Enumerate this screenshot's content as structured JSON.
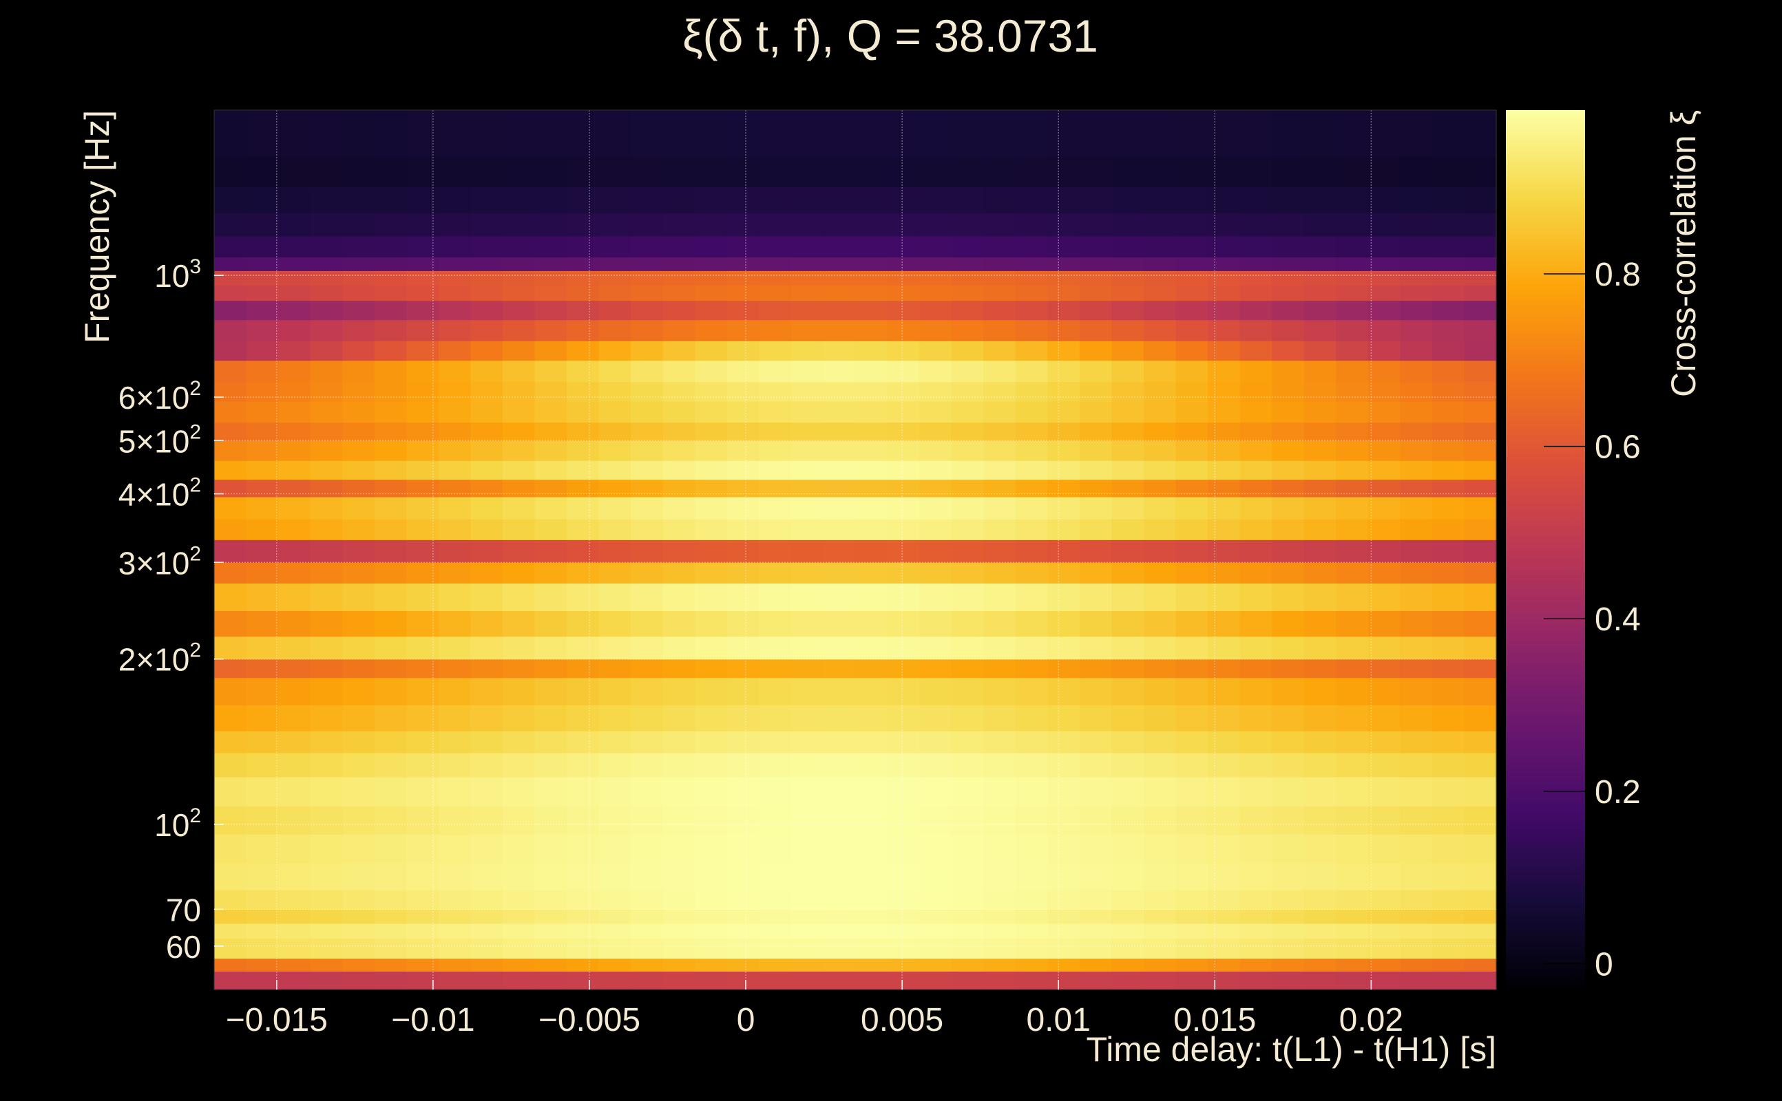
{
  "chart_data": {
    "type": "heatmap",
    "title": "ξ(δ t, f), Q = 38.0731",
    "xlabel": "Time delay: t(L1) - t(H1) [s]",
    "ylabel": "Frequency [Hz]",
    "colorbar_label": "Cross-correlation ξ",
    "colormap": "inferno",
    "xlim": [
      -0.017,
      0.024
    ],
    "ylim_log": [
      50,
      2000
    ],
    "y_scale": "log",
    "clim": [
      -0.03,
      0.99
    ],
    "grid": true,
    "x_ticks": [
      {
        "value": -0.015,
        "label": "−0.015"
      },
      {
        "value": -0.01,
        "label": "−0.01"
      },
      {
        "value": -0.005,
        "label": "−0.005"
      },
      {
        "value": 0,
        "label": "0"
      },
      {
        "value": 0.005,
        "label": "0.005"
      },
      {
        "value": 0.01,
        "label": "0.01"
      },
      {
        "value": 0.015,
        "label": "0.015"
      },
      {
        "value": 0.02,
        "label": "0.02"
      }
    ],
    "y_ticks": [
      {
        "value": 60,
        "base": "60",
        "exp": ""
      },
      {
        "value": 70,
        "base": "70",
        "exp": ""
      },
      {
        "value": 100,
        "base": "10",
        "exp": "2"
      },
      {
        "value": 200,
        "base": "2×10",
        "exp": "2"
      },
      {
        "value": 300,
        "base": "3×10",
        "exp": "2"
      },
      {
        "value": 400,
        "base": "4×10",
        "exp": "2"
      },
      {
        "value": 500,
        "base": "5×10",
        "exp": "2"
      },
      {
        "value": 600,
        "base": "6×10",
        "exp": "2"
      },
      {
        "value": 1000,
        "base": "10",
        "exp": "3"
      }
    ],
    "colorbar_ticks": [
      {
        "value": 0,
        "label": "0"
      },
      {
        "value": 0.2,
        "label": "0.2"
      },
      {
        "value": 0.4,
        "label": "0.4"
      },
      {
        "value": 0.6,
        "label": "0.6"
      },
      {
        "value": 0.8,
        "label": "0.8"
      }
    ],
    "rows": [
      {
        "f0": 50,
        "f1": 54,
        "base": 0.48,
        "peak": 0.05
      },
      {
        "f0": 54,
        "f1": 57,
        "base": 0.62,
        "peak": 0.2
      },
      {
        "f0": 57,
        "f1": 62,
        "base": 0.88,
        "peak": 0.1
      },
      {
        "f0": 62,
        "f1": 66,
        "base": 0.9,
        "peak": 0.09
      },
      {
        "f0": 66,
        "f1": 70,
        "base": 0.83,
        "peak": 0.15
      },
      {
        "f0": 70,
        "f1": 76,
        "base": 0.88,
        "peak": 0.11
      },
      {
        "f0": 76,
        "f1": 85,
        "base": 0.91,
        "peak": 0.08
      },
      {
        "f0": 85,
        "f1": 96,
        "base": 0.9,
        "peak": 0.09
      },
      {
        "f0": 96,
        "f1": 108,
        "base": 0.87,
        "peak": 0.12
      },
      {
        "f0": 108,
        "f1": 122,
        "base": 0.9,
        "peak": 0.09
      },
      {
        "f0": 122,
        "f1": 135,
        "base": 0.85,
        "peak": 0.13
      },
      {
        "f0": 135,
        "f1": 148,
        "base": 0.8,
        "peak": 0.15
      },
      {
        "f0": 148,
        "f1": 165,
        "base": 0.74,
        "peak": 0.18
      },
      {
        "f0": 165,
        "f1": 185,
        "base": 0.7,
        "peak": 0.2
      },
      {
        "f0": 185,
        "f1": 200,
        "base": 0.58,
        "peak": 0.22
      },
      {
        "f0": 200,
        "f1": 220,
        "base": 0.8,
        "peak": 0.18
      },
      {
        "f0": 220,
        "f1": 245,
        "base": 0.64,
        "peak": 0.3
      },
      {
        "f0": 245,
        "f1": 275,
        "base": 0.76,
        "peak": 0.22
      },
      {
        "f0": 275,
        "f1": 300,
        "base": 0.62,
        "peak": 0.24
      },
      {
        "f0": 300,
        "f1": 330,
        "base": 0.44,
        "peak": 0.18
      },
      {
        "f0": 330,
        "f1": 360,
        "base": 0.7,
        "peak": 0.26
      },
      {
        "f0": 360,
        "f1": 395,
        "base": 0.72,
        "peak": 0.26
      },
      {
        "f0": 395,
        "f1": 425,
        "base": 0.5,
        "peak": 0.34
      },
      {
        "f0": 425,
        "f1": 460,
        "base": 0.72,
        "peak": 0.26
      },
      {
        "f0": 460,
        "f1": 500,
        "base": 0.64,
        "peak": 0.3
      },
      {
        "f0": 500,
        "f1": 540,
        "base": 0.58,
        "peak": 0.3
      },
      {
        "f0": 540,
        "f1": 590,
        "base": 0.62,
        "peak": 0.3
      },
      {
        "f0": 590,
        "f1": 640,
        "base": 0.58,
        "peak": 0.36
      },
      {
        "f0": 640,
        "f1": 700,
        "base": 0.55,
        "peak": 0.42
      },
      {
        "f0": 700,
        "f1": 760,
        "base": 0.3,
        "peak": 0.6
      },
      {
        "f0": 760,
        "f1": 830,
        "base": 0.36,
        "peak": 0.35
      },
      {
        "f0": 830,
        "f1": 900,
        "base": 0.26,
        "peak": 0.35
      },
      {
        "f0": 900,
        "f1": 960,
        "base": 0.46,
        "peak": 0.22
      },
      {
        "f0": 960,
        "f1": 1020,
        "base": 0.5,
        "peak": 0.16
      },
      {
        "f0": 1020,
        "f1": 1080,
        "base": 0.2,
        "peak": 0.06
      },
      {
        "f0": 1080,
        "f1": 1180,
        "base": 0.12,
        "peak": 0.05
      },
      {
        "f0": 1180,
        "f1": 1300,
        "base": 0.08,
        "peak": 0.04
      },
      {
        "f0": 1300,
        "f1": 1450,
        "base": 0.06,
        "peak": 0.03
      },
      {
        "f0": 1450,
        "f1": 1650,
        "base": 0.04,
        "peak": 0.02
      },
      {
        "f0": 1650,
        "f1": 2000,
        "base": 0.05,
        "peak": 0.02
      }
    ],
    "peak_t": 0.003,
    "time_bins": 40
  }
}
